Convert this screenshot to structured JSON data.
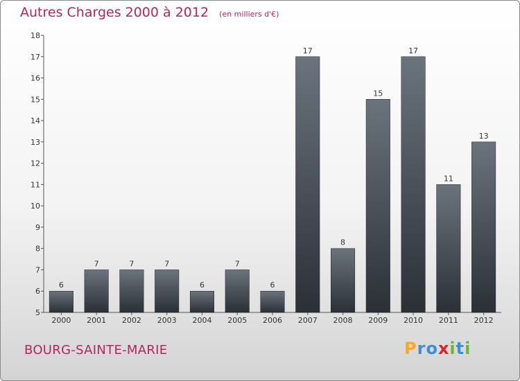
{
  "title": "Autres Charges 2000 à 2012",
  "subtitle": "(en milliers d'€)",
  "city": "BOURG-SAINTE-MARIE",
  "brand": {
    "letters": [
      "P",
      "r",
      "o",
      "x",
      "i",
      "t",
      "i"
    ],
    "colors": [
      "#f7a823",
      "#3a8fd9",
      "#3a8fd9",
      "#d9232e",
      "#6ab82f",
      "#3a8fd9",
      "#6ab82f"
    ]
  },
  "colors": {
    "bar_top": "#6b737c",
    "bar_bottom": "#2a3036",
    "title": "#b7245c"
  },
  "chart_data": {
    "type": "bar",
    "title": "Autres Charges 2000 à 2012",
    "subtitle": "(en milliers d'€)",
    "categories": [
      "2000",
      "2001",
      "2002",
      "2003",
      "2004",
      "2005",
      "2006",
      "2007",
      "2008",
      "2009",
      "2010",
      "2011",
      "2012"
    ],
    "values": [
      6,
      7,
      7,
      7,
      6,
      7,
      6,
      17,
      8,
      15,
      17,
      11,
      13
    ],
    "ylim": [
      5,
      18
    ],
    "yticks": [
      5,
      6,
      7,
      8,
      9,
      10,
      11,
      12,
      13,
      14,
      15,
      16,
      17,
      18
    ],
    "xlabel": "",
    "ylabel": "",
    "grid": false
  }
}
